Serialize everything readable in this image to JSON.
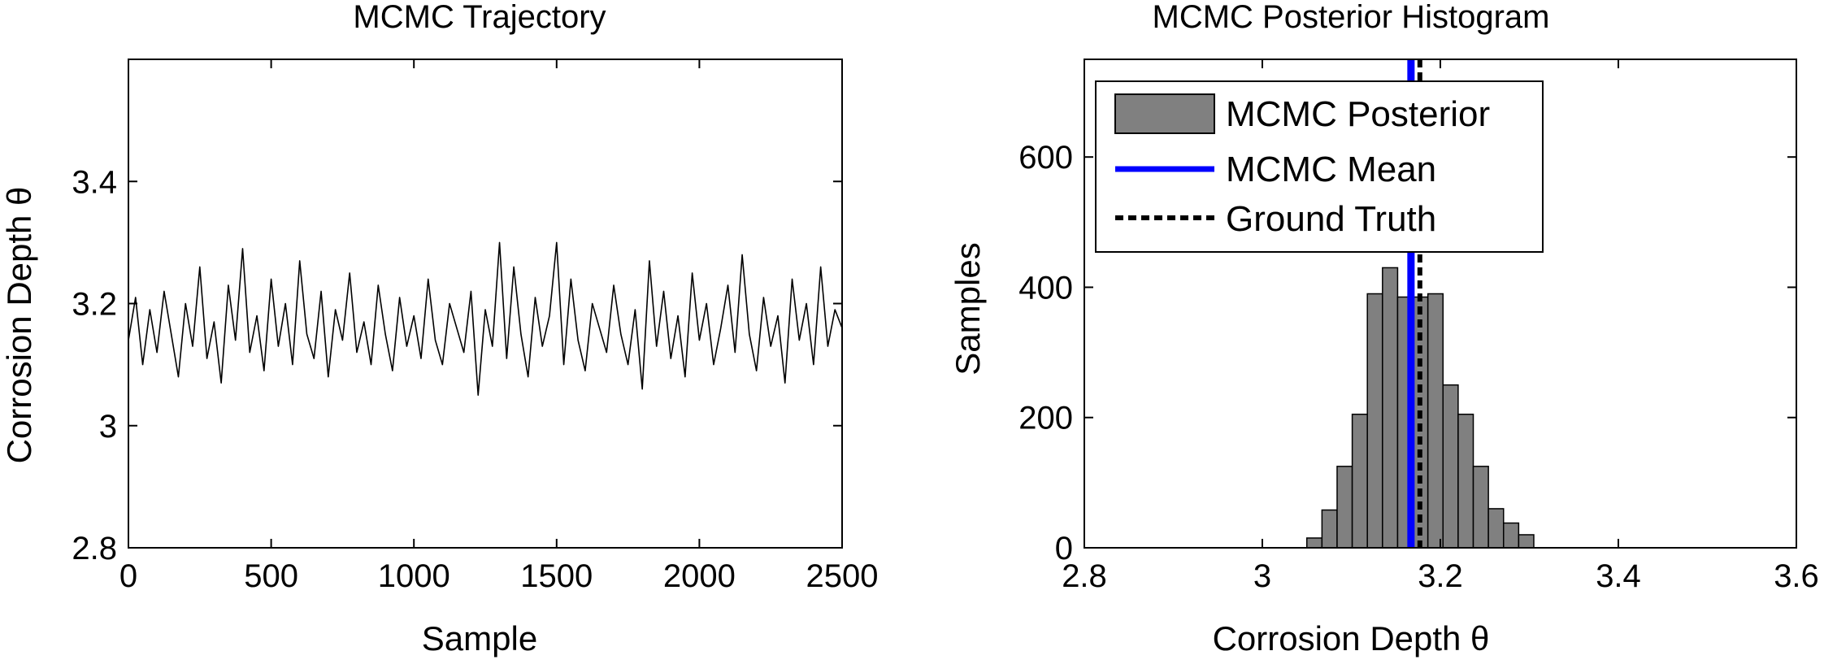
{
  "chart_data": [
    {
      "type": "line",
      "title": "MCMC Trajectory",
      "xlabel": "Sample",
      "ylabel": "Corrosion Depth θ",
      "xlim": [
        0,
        2500
      ],
      "ylim": [
        2.8,
        3.6
      ],
      "xticks": [
        0,
        500,
        1000,
        1500,
        2000,
        2500
      ],
      "xtick_labels": [
        "0",
        "500",
        "1000",
        "1500",
        "2000",
        "2500"
      ],
      "yticks": [
        2.8,
        3.0,
        3.2,
        3.4
      ],
      "ytick_labels": [
        "2.8",
        "3",
        "3.2",
        "3.4"
      ],
      "grid": false,
      "series": [
        {
          "color": "#000000",
          "x": [
            0,
            25,
            50,
            75,
            100,
            125,
            150,
            175,
            200,
            225,
            250,
            275,
            300,
            325,
            350,
            375,
            400,
            425,
            450,
            475,
            500,
            525,
            550,
            575,
            600,
            625,
            650,
            675,
            700,
            725,
            750,
            775,
            800,
            825,
            850,
            875,
            900,
            925,
            950,
            975,
            1000,
            1025,
            1050,
            1075,
            1100,
            1125,
            1150,
            1175,
            1200,
            1225,
            1250,
            1275,
            1300,
            1325,
            1350,
            1375,
            1400,
            1425,
            1450,
            1475,
            1500,
            1525,
            1550,
            1575,
            1600,
            1625,
            1650,
            1675,
            1700,
            1725,
            1750,
            1775,
            1800,
            1825,
            1850,
            1875,
            1900,
            1925,
            1950,
            1975,
            2000,
            2025,
            2050,
            2075,
            2100,
            2125,
            2150,
            2175,
            2200,
            2225,
            2250,
            2275,
            2300,
            2325,
            2350,
            2375,
            2400,
            2425,
            2450,
            2475,
            2500
          ],
          "y": [
            3.14,
            3.21,
            3.1,
            3.19,
            3.12,
            3.22,
            3.15,
            3.08,
            3.2,
            3.13,
            3.26,
            3.11,
            3.17,
            3.07,
            3.23,
            3.14,
            3.29,
            3.12,
            3.18,
            3.09,
            3.24,
            3.13,
            3.2,
            3.1,
            3.27,
            3.15,
            3.11,
            3.22,
            3.08,
            3.19,
            3.14,
            3.25,
            3.12,
            3.17,
            3.1,
            3.23,
            3.15,
            3.09,
            3.21,
            3.13,
            3.18,
            3.11,
            3.24,
            3.14,
            3.1,
            3.2,
            3.16,
            3.12,
            3.22,
            3.05,
            3.19,
            3.13,
            3.3,
            3.11,
            3.26,
            3.15,
            3.08,
            3.21,
            3.13,
            3.18,
            3.3,
            3.1,
            3.24,
            3.14,
            3.09,
            3.2,
            3.16,
            3.12,
            3.23,
            3.15,
            3.1,
            3.19,
            3.06,
            3.27,
            3.13,
            3.22,
            3.11,
            3.18,
            3.08,
            3.25,
            3.14,
            3.2,
            3.1,
            3.16,
            3.23,
            3.12,
            3.28,
            3.15,
            3.09,
            3.21,
            3.13,
            3.18,
            3.07,
            3.24,
            3.14,
            3.2,
            3.1,
            3.26,
            3.13,
            3.19,
            3.16
          ]
        }
      ]
    },
    {
      "type": "bar",
      "subtype": "histogram",
      "title": "MCMC Posterior Histogram",
      "xlabel": "Corrosion Depth θ",
      "ylabel": "Samples",
      "xlim": [
        2.8,
        3.6
      ],
      "ylim": [
        0,
        750
      ],
      "xticks": [
        2.8,
        3.0,
        3.2,
        3.4,
        3.6
      ],
      "xtick_labels": [
        "2.8",
        "3",
        "3.2",
        "3.4",
        "3.6"
      ],
      "yticks": [
        0,
        200,
        400,
        600
      ],
      "ytick_labels": [
        "0",
        "200",
        "400",
        "600"
      ],
      "grid": false,
      "bar_color": "#808080",
      "bin_edges": [
        3.05,
        3.067,
        3.084,
        3.101,
        3.118,
        3.135,
        3.152,
        3.169,
        3.186,
        3.203,
        3.22,
        3.237,
        3.254,
        3.271,
        3.288,
        3.305
      ],
      "counts": [
        15,
        58,
        125,
        205,
        390,
        430,
        385,
        385,
        390,
        250,
        205,
        125,
        60,
        38,
        20
      ],
      "series": [
        {
          "name": "MCMC Posterior",
          "kind": "histogram",
          "color": "#808080"
        },
        {
          "name": "MCMC Mean",
          "kind": "vline",
          "x": 3.167,
          "color": "#0000ff",
          "style": "solid"
        },
        {
          "name": "Ground Truth",
          "kind": "vline",
          "x": 3.177,
          "color": "#000000",
          "style": "dashed"
        }
      ],
      "legend": "top-left"
    }
  ]
}
